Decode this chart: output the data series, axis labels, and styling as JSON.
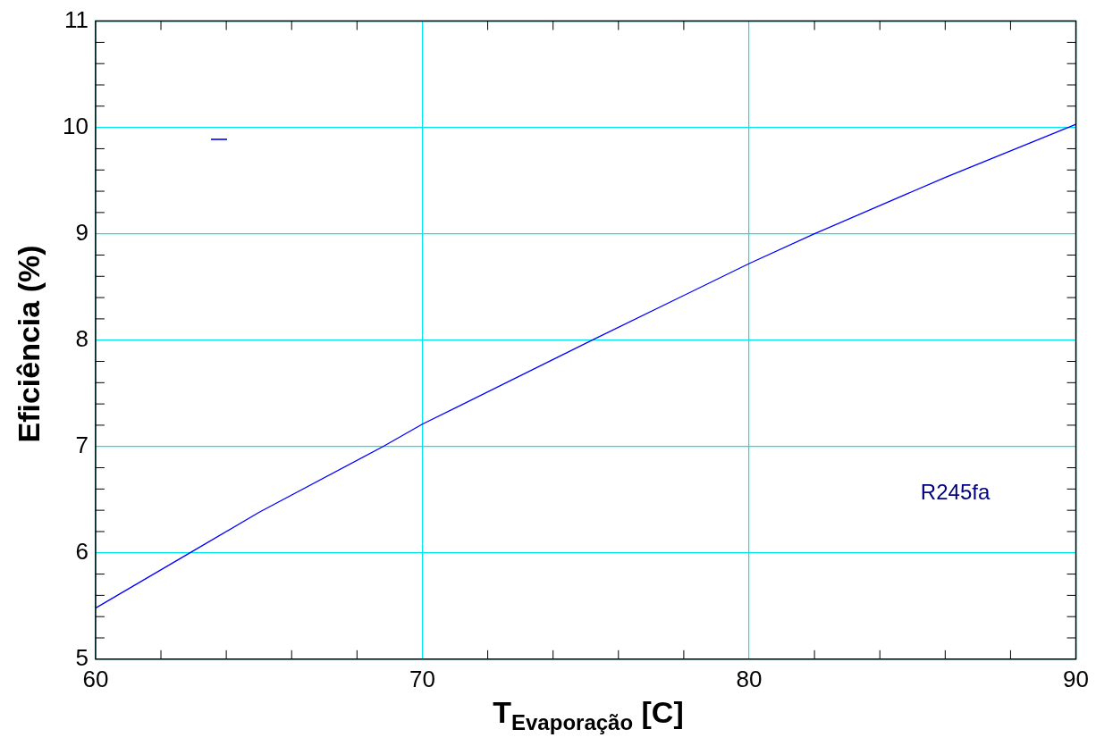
{
  "chart_data": {
    "type": "line",
    "xlabel": "T$_{Evaporação}$  [C]",
    "ylabel": "Eficiência (%)",
    "x": [
      60,
      63,
      65,
      68.8,
      70,
      75.2,
      80,
      82,
      86,
      90
    ],
    "series": [
      {
        "color": "#0000ff",
        "values": [
          5.48,
          6.02,
          6.38,
          7.0,
          7.21,
          8.0,
          8.72,
          9.0,
          9.53,
          10.03
        ]
      }
    ],
    "annotations": [
      "R245fa"
    ],
    "xlim": [
      60,
      90
    ],
    "xticks": [
      60,
      {
        "value": 62,
        "label": null
      },
      {
        "value": 64,
        "label": null
      },
      {
        "value": 66,
        "label": null
      },
      {
        "value": 68,
        "label": null
      },
      70,
      {
        "value": 72,
        "label": null
      },
      {
        "value": 74,
        "label": null
      },
      {
        "value": 76,
        "label": null
      },
      {
        "value": 78,
        "label": null
      },
      80,
      {
        "value": 82,
        "label": null
      },
      {
        "value": 84,
        "label": null
      },
      {
        "value": 86,
        "label": null
      },
      {
        "value": 88,
        "label": null
      },
      90
    ],
    "ylim": [
      5,
      11
    ],
    "yticks": [
      5,
      {
        "value": 5.2,
        "label": null
      },
      {
        "value": 5.4,
        "label": null
      },
      {
        "value": 5.6,
        "label": null
      },
      {
        "value": 5.8,
        "label": null
      },
      6,
      {
        "value": 6.2,
        "label": null
      },
      {
        "value": 6.4,
        "label": null
      },
      {
        "value": 6.6,
        "label": null
      },
      {
        "value": 6.8,
        "label": null
      },
      7,
      {
        "value": 7.2,
        "label": null
      },
      {
        "value": 7.4,
        "label": null
      },
      {
        "value": 7.6,
        "label": null
      },
      {
        "value": 7.8,
        "label": null
      },
      8,
      {
        "value": 8.2,
        "label": null
      },
      {
        "value": 8.4,
        "label": null
      },
      {
        "value": 8.6,
        "label": null
      },
      {
        "value": 8.8,
        "label": null
      },
      9,
      {
        "value": 9.2,
        "label": null
      },
      {
        "value": 9.4,
        "label": null
      },
      {
        "value": 9.6,
        "label": null
      },
      {
        "value": 9.8,
        "label": null
      },
      10,
      {
        "value": 10.2,
        "label": null
      },
      {
        "value": 10.4,
        "label": null
      },
      {
        "value": 10.6,
        "label": null
      },
      {
        "value": 10.8,
        "label": null
      },
      11
    ],
    "grid": true,
    "legend": false,
    "marker": "none",
    "line_style": "solid"
  }
}
